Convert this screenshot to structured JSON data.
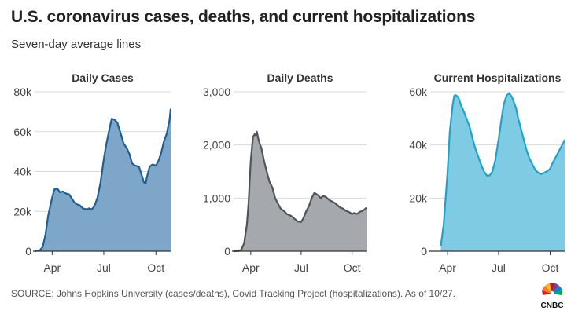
{
  "header": {
    "title": "U.S. coronavirus cases, deaths, and current hospitalizations",
    "subtitle": "Seven-day average lines"
  },
  "footer": {
    "source": "SOURCE: Johns Hopkins University (cases/deaths), Covid Tracking Project (hospitalizations). As of 10/27.",
    "logo_text": "CNBC"
  },
  "colors": {
    "cases_line": "#1f5f91",
    "cases_fill": "#7ea6c9",
    "deaths_line": "#4f545a",
    "deaths_fill": "#a5a9ae",
    "hosp_line": "#1fa3c9",
    "hosp_fill": "#7fcbe3",
    "grid": "#d9d9d9",
    "axis": "#333333"
  },
  "chart_data": [
    {
      "type": "area",
      "title": "Daily Cases",
      "xlabel": "",
      "ylabel": "",
      "x_ticks": [
        "Apr",
        "Jul",
        "Oct"
      ],
      "y_ticks": [
        "0",
        "20k",
        "40k",
        "60k",
        "80k"
      ],
      "ylim": [
        0,
        80000
      ],
      "grid": true,
      "series": [
        {
          "x": [
            "03-01",
            "03-10",
            "03-15",
            "03-20",
            "03-25",
            "04-01",
            "04-05",
            "04-10",
            "04-15",
            "04-20",
            "04-25",
            "05-01",
            "05-10",
            "05-15",
            "05-20",
            "05-25",
            "06-01",
            "06-05",
            "06-10",
            "06-15",
            "06-20",
            "06-25",
            "07-01",
            "07-05",
            "07-10",
            "07-15",
            "07-20",
            "07-25",
            "08-01",
            "08-05",
            "08-10",
            "08-15",
            "08-20",
            "08-25",
            "09-01",
            "09-05",
            "09-10",
            "09-13",
            "09-15",
            "09-20",
            "09-25",
            "10-01",
            "10-05",
            "10-10",
            "10-15",
            "10-20",
            "10-25",
            "10-27"
          ],
          "y": [
            0,
            500,
            2000,
            8000,
            18000,
            27000,
            31000,
            31500,
            29500,
            30000,
            29000,
            28500,
            24500,
            23500,
            23000,
            21500,
            21000,
            21500,
            21000,
            23000,
            27000,
            34000,
            46000,
            53000,
            60000,
            66500,
            66000,
            64500,
            58000,
            54000,
            52000,
            49000,
            44000,
            43000,
            42500,
            39000,
            34500,
            34000,
            37000,
            42500,
            43500,
            43000,
            45000,
            49000,
            55000,
            59000,
            66000,
            71500
          ]
        }
      ]
    },
    {
      "type": "area",
      "title": "Daily Deaths",
      "xlabel": "",
      "ylabel": "",
      "x_ticks": [
        "Apr",
        "Jul",
        "Oct"
      ],
      "y_ticks": [
        "0",
        "1,000",
        "2,000",
        "3,000"
      ],
      "ylim": [
        0,
        3000
      ],
      "grid": true,
      "series": [
        {
          "x": [
            "03-01",
            "03-10",
            "03-15",
            "03-20",
            "03-25",
            "03-28",
            "04-01",
            "04-05",
            "04-08",
            "04-10",
            "04-12",
            "04-15",
            "04-18",
            "04-20",
            "04-25",
            "05-01",
            "05-05",
            "05-10",
            "05-15",
            "05-20",
            "05-25",
            "06-01",
            "06-05",
            "06-10",
            "06-15",
            "06-20",
            "06-25",
            "07-01",
            "07-05",
            "07-10",
            "07-15",
            "07-20",
            "07-25",
            "08-01",
            "08-05",
            "08-10",
            "08-15",
            "08-20",
            "08-25",
            "09-01",
            "09-05",
            "09-10",
            "09-15",
            "09-20",
            "09-25",
            "10-01",
            "10-05",
            "10-10",
            "10-15",
            "10-20",
            "10-25",
            "10-27"
          ],
          "y": [
            0,
            5,
            30,
            150,
            500,
            900,
            1700,
            2150,
            2200,
            2180,
            2250,
            2100,
            2000,
            1950,
            1700,
            1450,
            1300,
            1200,
            1000,
            900,
            800,
            750,
            700,
            680,
            650,
            600,
            560,
            550,
            620,
            750,
            850,
            1000,
            1100,
            1050,
            1000,
            1040,
            1020,
            970,
            940,
            900,
            860,
            820,
            800,
            760,
            740,
            700,
            720,
            700,
            740,
            760,
            800,
            820
          ]
        }
      ]
    },
    {
      "type": "area",
      "title": "Current Hospitalizations",
      "xlabel": "",
      "ylabel": "",
      "x_ticks": [
        "Apr",
        "Jul",
        "Oct"
      ],
      "y_ticks": [
        "0",
        "20k",
        "40k",
        "60k"
      ],
      "ylim": [
        0,
        60000
      ],
      "grid": true,
      "series": [
        {
          "x": [
            "03-20",
            "03-25",
            "04-01",
            "04-05",
            "04-10",
            "04-13",
            "04-15",
            "04-20",
            "04-25",
            "05-01",
            "05-10",
            "05-15",
            "05-20",
            "05-25",
            "06-01",
            "06-05",
            "06-10",
            "06-15",
            "06-20",
            "06-25",
            "07-01",
            "07-05",
            "07-10",
            "07-15",
            "07-20",
            "07-25",
            "08-01",
            "08-05",
            "08-10",
            "08-15",
            "08-20",
            "08-25",
            "09-01",
            "09-05",
            "09-10",
            "09-15",
            "09-20",
            "09-25",
            "10-01",
            "10-05",
            "10-10",
            "10-15",
            "10-20",
            "10-25",
            "10-27"
          ],
          "y": [
            2000,
            10000,
            30000,
            45000,
            55000,
            58500,
            58800,
            58000,
            55000,
            52000,
            47000,
            43000,
            39000,
            36000,
            32000,
            30000,
            28500,
            28500,
            30000,
            34000,
            42000,
            48000,
            55000,
            58500,
            59500,
            58000,
            54000,
            50000,
            46000,
            42000,
            38000,
            35000,
            32000,
            30500,
            29500,
            29000,
            29500,
            30000,
            31000,
            33000,
            35000,
            37000,
            39000,
            41000,
            42000
          ]
        }
      ]
    }
  ]
}
